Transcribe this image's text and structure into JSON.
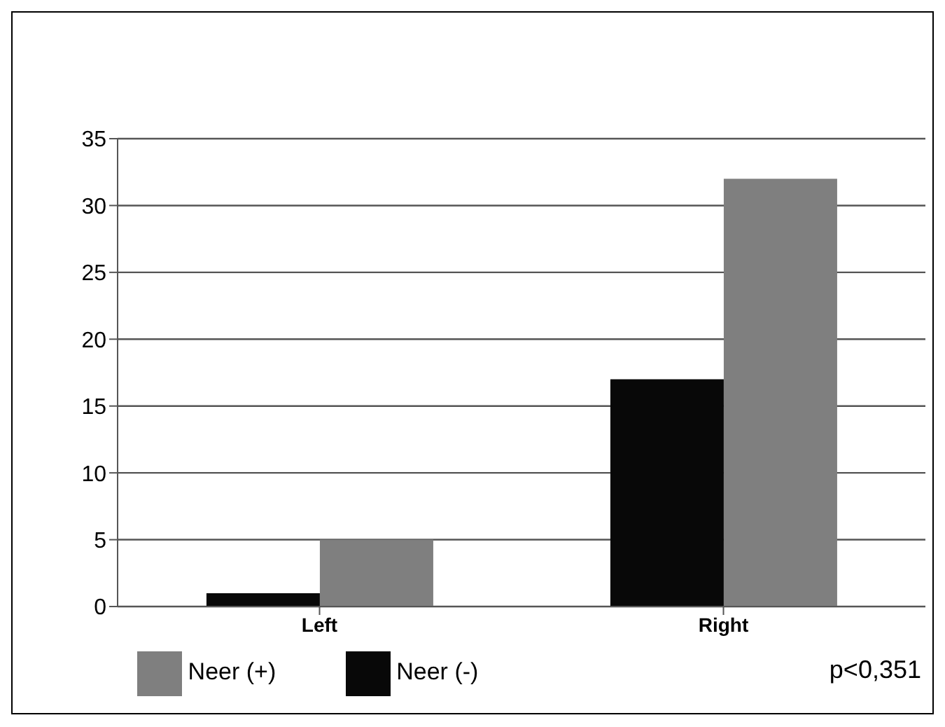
{
  "chart_data": {
    "type": "bar",
    "categories": [
      "Left",
      "Right"
    ],
    "series": [
      {
        "name": "Neer (-)",
        "color": "#080808",
        "values": [
          1,
          17
        ]
      },
      {
        "name": "Neer (+)",
        "color": "#7f7f7f",
        "values": [
          5,
          32
        ]
      }
    ],
    "ylim": [
      0,
      35
    ],
    "yticks": [
      0,
      5,
      10,
      15,
      20,
      25,
      30,
      35
    ],
    "grid": "y",
    "legend": "bottom",
    "annotations": [
      "p<0,351"
    ]
  }
}
